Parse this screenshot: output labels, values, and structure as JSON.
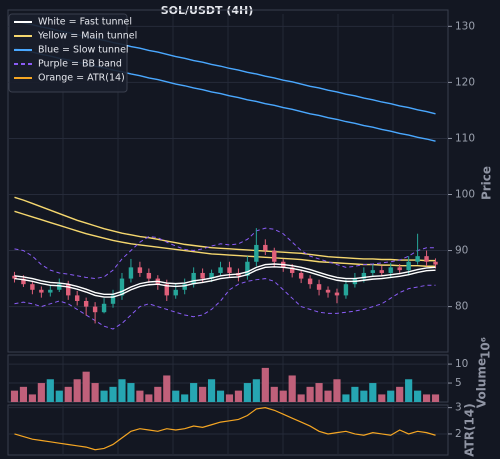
{
  "chart_data": [
    {
      "type": "candlestick",
      "title": "SOL/USDT (4H)",
      "ylabel": "Price",
      "ylim": [
        71.9,
        132.2
      ],
      "yticks": [
        80,
        90,
        100,
        110,
        120,
        130
      ],
      "grid": true,
      "up_color": "#26a69a",
      "down_color": "#e0607a",
      "open": [
        85.5,
        85,
        84,
        83,
        82.5,
        83,
        84,
        82,
        81,
        80,
        79,
        80.5,
        82,
        85,
        87,
        86,
        85,
        84,
        82,
        83,
        84,
        86,
        85,
        86,
        87,
        86,
        85.5,
        88,
        91,
        90,
        88,
        87,
        86,
        85,
        84,
        83,
        82.5,
        82,
        84,
        85,
        86,
        86.5,
        86,
        87,
        86.5,
        88,
        89,
        88
      ],
      "high": [
        86.2,
        85.6,
        84.5,
        83.6,
        83.8,
        85,
        84.6,
        82.8,
        81.6,
        80.8,
        81.5,
        83,
        86,
        88.5,
        88,
        86.8,
        85.6,
        84.8,
        84,
        85,
        87,
        86.8,
        86.6,
        88,
        88,
        86.8,
        89,
        94,
        92,
        90.5,
        88.5,
        87.6,
        86.5,
        85.6,
        84.8,
        83.6,
        83.2,
        84.8,
        86,
        87,
        87.5,
        87.3,
        87.8,
        87.6,
        89,
        93,
        90,
        88.6
      ],
      "low": [
        84.3,
        83.5,
        82.2,
        81.6,
        81.8,
        82.6,
        81.2,
        80.2,
        78.4,
        77,
        78.8,
        79.8,
        81.2,
        84.3,
        85.3,
        84.2,
        83,
        81,
        81.4,
        82.2,
        83.4,
        84.3,
        84.4,
        85.4,
        85.2,
        84.5,
        84.8,
        87.2,
        89.2,
        87,
        86.2,
        85.2,
        84.2,
        83.2,
        82,
        81.6,
        80.6,
        81.4,
        83.4,
        84.3,
        85.3,
        85.4,
        85.3,
        85.8,
        85.6,
        87.5,
        87.2,
        86.8
      ],
      "close": [
        85,
        84,
        83,
        82.5,
        83,
        84,
        82,
        81,
        80,
        79,
        80.5,
        82,
        85,
        87,
        86,
        85,
        84,
        82,
        83,
        84,
        86,
        85,
        86,
        87,
        86,
        85.5,
        88,
        91,
        90,
        88,
        87,
        86,
        85,
        84,
        83,
        82.5,
        82,
        84,
        85,
        86,
        86.5,
        86,
        87,
        86.5,
        88,
        89,
        88,
        87.5
      ],
      "series": [
        {
          "name": "White = Fast tunnel",
          "color": "#ffffff",
          "dash": false,
          "values": [
            85.5,
            85.3,
            85.0,
            84.6,
            84.3,
            84.2,
            84.0,
            83.6,
            83.1,
            82.5,
            82.2,
            82.2,
            82.7,
            83.5,
            84.1,
            84.4,
            84.5,
            84.2,
            84.1,
            84.2,
            84.6,
            84.8,
            85.1,
            85.5,
            85.7,
            85.8,
            86.2,
            87.0,
            87.5,
            87.6,
            87.5,
            87.3,
            87.0,
            86.6,
            86.1,
            85.6,
            85.2,
            85.0,
            85.0,
            85.2,
            85.4,
            85.5,
            85.7,
            85.9,
            86.2,
            86.6,
            86.9,
            87.0
          ],
          "lower": [
            85.0,
            84.8,
            84.5,
            84.1,
            83.8,
            83.7,
            83.5,
            83.1,
            82.6,
            82.0,
            81.7,
            81.7,
            82.2,
            83.0,
            83.6,
            83.9,
            84.0,
            83.7,
            83.6,
            83.7,
            84.1,
            84.3,
            84.6,
            85.0,
            85.2,
            85.3,
            85.7,
            86.5,
            87.0,
            87.1,
            87.0,
            86.8,
            86.5,
            86.1,
            85.6,
            85.1,
            84.7,
            84.5,
            84.5,
            84.7,
            84.9,
            85.0,
            85.2,
            85.4,
            85.7,
            86.1,
            86.4,
            86.5
          ]
        },
        {
          "name": "Yellow = Main tunnel",
          "color": "#f5d76e",
          "dash": false,
          "values": [
            99.5,
            99.0,
            98.4,
            97.8,
            97.2,
            96.6,
            96.0,
            95.4,
            94.9,
            94.4,
            93.9,
            93.5,
            93.1,
            92.8,
            92.5,
            92.3,
            92.0,
            91.7,
            91.4,
            91.1,
            90.9,
            90.7,
            90.5,
            90.4,
            90.3,
            90.2,
            90.1,
            90.0,
            89.9,
            89.8,
            89.7,
            89.6,
            89.5,
            89.3,
            89.1,
            88.9,
            88.8,
            88.7,
            88.6,
            88.5,
            88.5,
            88.4,
            88.4,
            88.3,
            88.3,
            88.3,
            88.2,
            88.2
          ],
          "lower": [
            97,
            96.5,
            96.0,
            95.5,
            95.0,
            94.5,
            94.0,
            93.5,
            93.0,
            92.6,
            92.2,
            91.8,
            91.5,
            91.2,
            91.0,
            90.8,
            90.6,
            90.4,
            90.2,
            90.0,
            89.8,
            89.6,
            89.4,
            89.3,
            89.2,
            89.1,
            89.0,
            88.9,
            88.8,
            88.7,
            88.6,
            88.5,
            88.4,
            88.2,
            88.0,
            87.9,
            87.8,
            87.7,
            87.6,
            87.5,
            87.5,
            87.4,
            87.4,
            87.3,
            87.3,
            87.3,
            87.2,
            87.2
          ]
        },
        {
          "name": "Blue = Slow tunnel",
          "color": "#4aa8ff",
          "dash": false,
          "values": [
            131.0,
            130.6,
            130.3,
            129.9,
            129.6,
            129.2,
            128.9,
            128.5,
            128.2,
            127.8,
            127.5,
            127.1,
            126.8,
            126.4,
            126.1,
            125.7,
            125.4,
            125.0,
            124.6,
            124.3,
            123.9,
            123.6,
            123.2,
            122.9,
            122.5,
            122.2,
            121.8,
            121.5,
            121.1,
            120.8,
            120.4,
            120.1,
            119.7,
            119.3,
            119.0,
            118.6,
            118.3,
            117.9,
            117.6,
            117.2,
            116.9,
            116.5,
            116.2,
            115.8,
            115.5,
            115.1,
            114.8,
            114.4
          ],
          "lower": [
            126.1,
            125.7,
            125.4,
            125.0,
            124.7,
            124.3,
            124.0,
            123.6,
            123.3,
            122.9,
            122.6,
            122.2,
            121.9,
            121.5,
            121.2,
            120.8,
            120.5,
            120.1,
            119.7,
            119.4,
            119.0,
            118.7,
            118.3,
            118.0,
            117.6,
            117.3,
            116.9,
            116.6,
            116.2,
            115.9,
            115.5,
            115.2,
            114.8,
            114.4,
            114.1,
            113.7,
            113.4,
            113.0,
            112.7,
            112.3,
            112.0,
            111.6,
            111.3,
            110.9,
            110.6,
            110.2,
            109.9,
            109.5
          ]
        },
        {
          "name": "Purple = BB band",
          "color": "#8a5cf6",
          "dash": true,
          "values": [
            90.3,
            90.0,
            89.0,
            87.5,
            86.5,
            86.0,
            85.8,
            85.5,
            85.2,
            85.0,
            85.3,
            86.5,
            88.5,
            90.0,
            91.5,
            92.5,
            92.3,
            91.5,
            90.8,
            90.2,
            90.0,
            90.3,
            90.8,
            91.2,
            91.0,
            91.2,
            92.0,
            93.5,
            94.0,
            93.8,
            93.0,
            91.5,
            90.0,
            89.0,
            88.5,
            88.0,
            87.5,
            87.0,
            87.2,
            87.5,
            87.6,
            87.8,
            88.0,
            88.3,
            89.0,
            90.0,
            90.5,
            90.5
          ],
          "lower": [
            80.5,
            80.8,
            80.5,
            80.0,
            80.5,
            81.0,
            80.5,
            79.5,
            78.5,
            77.5,
            76.5,
            76.0,
            77.0,
            78.5,
            80.0,
            80.5,
            80.0,
            79.5,
            79.0,
            78.5,
            78.2,
            78.5,
            79.5,
            81.0,
            83.0,
            84.0,
            84.5,
            84.8,
            85.0,
            84.5,
            83.0,
            81.5,
            80.0,
            79.5,
            79.0,
            78.8,
            78.8,
            79.0,
            79.2,
            79.5,
            80.0,
            80.5,
            81.5,
            82.5,
            83.2,
            83.5,
            83.8,
            83.8
          ]
        }
      ]
    },
    {
      "type": "bar",
      "ylabel": "Volume",
      "scale_label": "10⁶",
      "ylim": [
        0,
        12.4
      ],
      "yticks": [
        5,
        10
      ],
      "grid": true,
      "up_color": "#26a6b2",
      "down_color": "#c0607a",
      "values": [
        3,
        4,
        2,
        5,
        6,
        3,
        4,
        6,
        8,
        5,
        3,
        4,
        6,
        5,
        3,
        2,
        4,
        7,
        3,
        2,
        5,
        4,
        6,
        3,
        2,
        3,
        5,
        6,
        9,
        4,
        3,
        7,
        2,
        4,
        5,
        3,
        6,
        2,
        4,
        3,
        5,
        2,
        3,
        4,
        6,
        3,
        2,
        2
      ]
    },
    {
      "type": "line",
      "ylabel": "ATR(14)",
      "ylim": [
        1.2,
        3.1
      ],
      "yticks": [
        2,
        3
      ],
      "grid": true,
      "series": [
        {
          "name": "Orange = ATR(14)",
          "color": "#f5a623",
          "dash": false,
          "values": [
            2.0,
            1.9,
            1.8,
            1.75,
            1.7,
            1.65,
            1.6,
            1.55,
            1.5,
            1.4,
            1.45,
            1.6,
            1.85,
            2.1,
            2.2,
            2.15,
            2.1,
            2.2,
            2.15,
            2.2,
            2.3,
            2.25,
            2.35,
            2.45,
            2.5,
            2.55,
            2.7,
            2.95,
            3.0,
            2.9,
            2.75,
            2.6,
            2.45,
            2.3,
            2.1,
            2.0,
            2.05,
            2.1,
            2.0,
            1.95,
            2.05,
            2.0,
            1.95,
            2.15,
            2.0,
            2.1,
            2.05,
            1.95
          ]
        }
      ]
    }
  ]
}
